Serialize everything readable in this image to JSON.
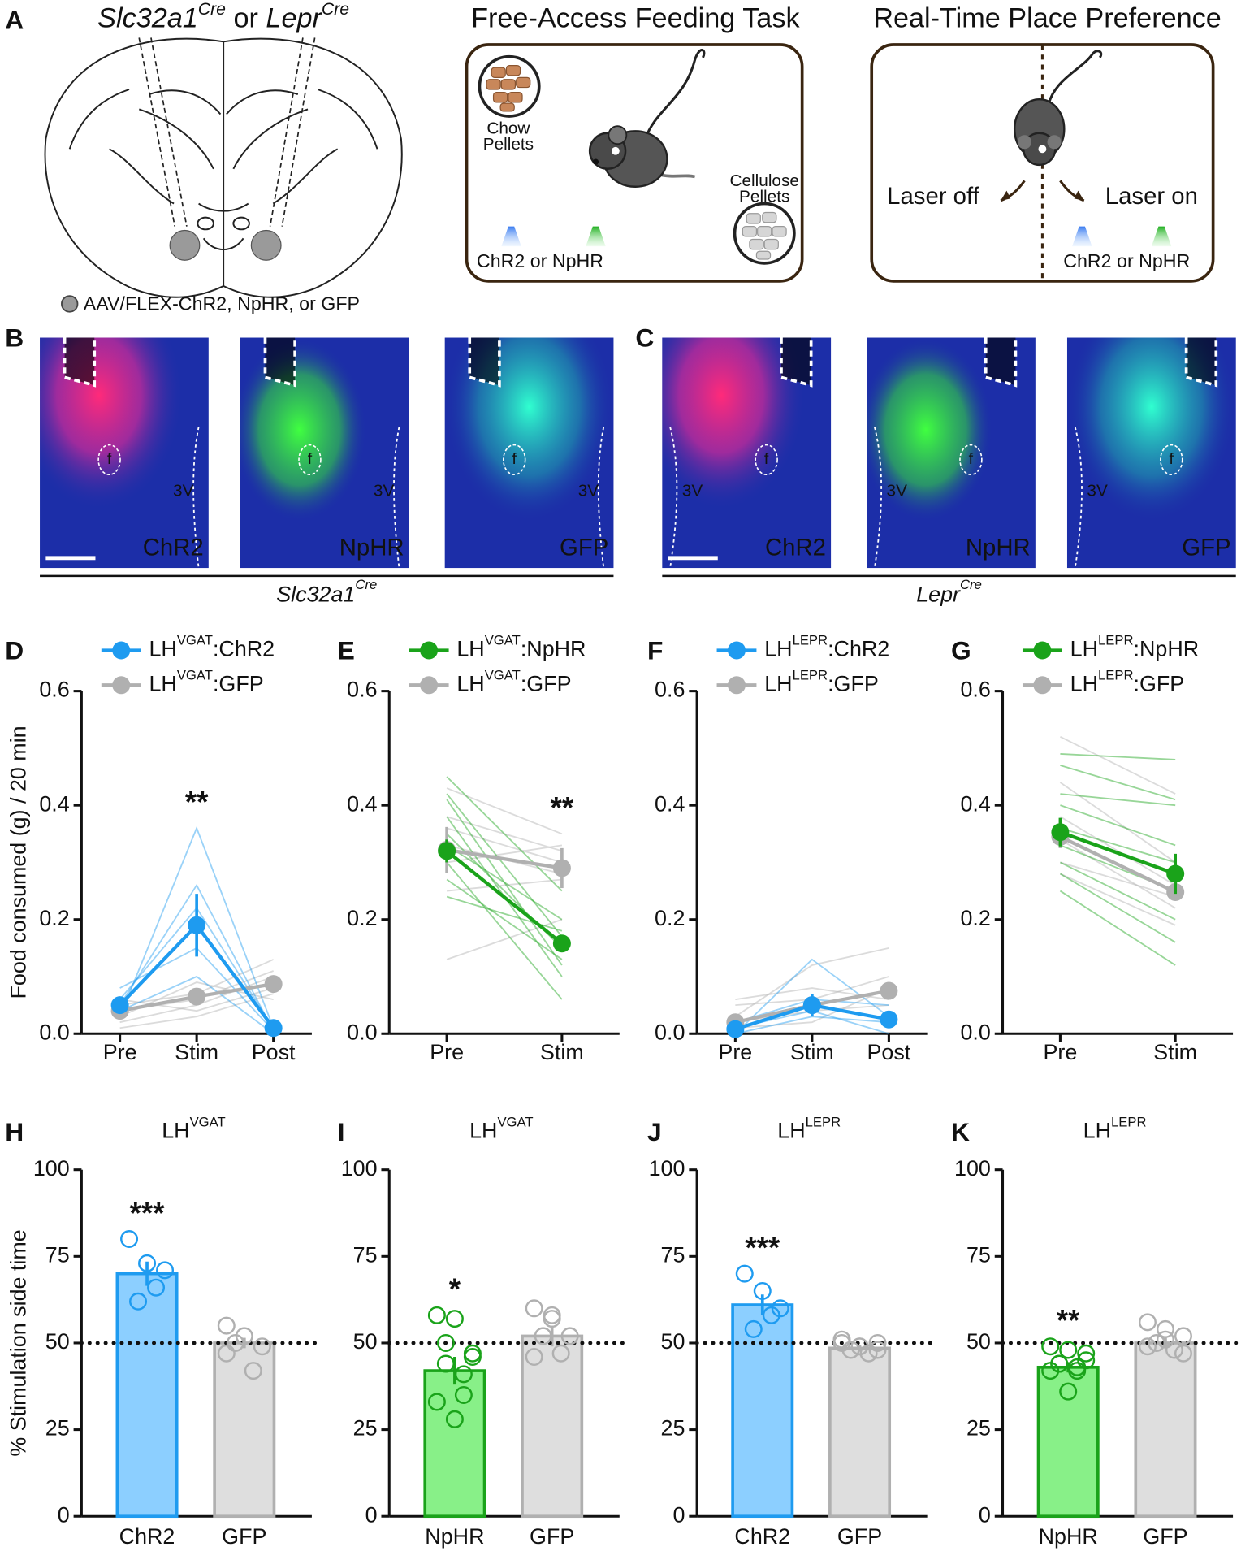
{
  "panel_letters": [
    "A",
    "B",
    "C",
    "D",
    "E",
    "F",
    "G",
    "H",
    "I",
    "J",
    "K"
  ],
  "panel_a": {
    "title": [
      {
        "text": "Slc32a1",
        "italic": true
      },
      {
        "text": "Cre",
        "italic": true,
        "sup": true
      },
      {
        "text": " or "
      },
      {
        "text": "Lepr",
        "italic": true
      },
      {
        "text": "Cre",
        "italic": true,
        "sup": true
      }
    ],
    "legend": "AAV/FLEX-ChR2, NpHR, or GFP"
  },
  "feeding_task": {
    "title": "Free-Access Feeding Task",
    "chow_label": [
      "Chow",
      "Pellets"
    ],
    "cellulose_label": [
      "Cellulose",
      "Pellets"
    ],
    "opsin_label": "ChR2 or NpHR"
  },
  "place_preference": {
    "title": "Real-Time Place Preference",
    "left_label": "Laser off",
    "right_label": "Laser on",
    "opsin_label": "ChR2 or NpHR"
  },
  "histology": {
    "fornix_label": "f",
    "ventricle_label": "3V",
    "groups": [
      {
        "label": [
          {
            "text": "Slc32a1",
            "italic": true
          },
          {
            "text": "Cre",
            "italic": true,
            "sup": true
          }
        ],
        "images": [
          "ChR2",
          "NpHR",
          "GFP"
        ]
      },
      {
        "label": [
          {
            "text": "Lepr",
            "italic": true
          },
          {
            "text": "Cre",
            "italic": true,
            "sup": true
          }
        ],
        "images": [
          "ChR2",
          "NpHR",
          "GFP"
        ]
      }
    ]
  },
  "chart_data": [
    {
      "type": "line",
      "ylabel": "Food consumed (g) / 20 min",
      "categories": [
        "Pre",
        "Stim",
        "Post"
      ],
      "ylim": [
        0,
        0.6
      ],
      "yticks": [
        {
          "value": 0,
          "label": "0.0"
        },
        {
          "value": 0.2,
          "label": "0.2"
        },
        {
          "value": 0.4,
          "label": "0.4"
        },
        {
          "value": 0.6,
          "label": "0.6"
        }
      ],
      "series": [
        {
          "name": "LHVGAT:ChR2",
          "color": "#1e9bf0",
          "values": [
            0.05,
            0.19,
            0.01
          ],
          "errors": [
            0.01,
            0.055,
            0.005
          ],
          "individual": [
            [
              0.03,
              0.36,
              0.01
            ],
            [
              0.05,
              0.26,
              0.005
            ],
            [
              0.06,
              0.22,
              0.01
            ],
            [
              0.08,
              0.15,
              0.005
            ],
            [
              0.04,
              0.1,
              0
            ]
          ]
        },
        {
          "name": "LHVGAT:GFP",
          "color": "#b0b0b0",
          "values": [
            0.04,
            0.065,
            0.087
          ],
          "errors": [
            0.01,
            0.01,
            0.015
          ],
          "individual": [
            [
              0.02,
              0.05,
              0.1
            ],
            [
              0.05,
              0.07,
              0.13
            ],
            [
              0.03,
              0.09,
              0.06
            ],
            [
              0.06,
              0.04,
              0.08
            ],
            [
              0.04,
              0.06,
              0.11
            ],
            [
              0.01,
              0.03,
              0.07
            ]
          ]
        }
      ],
      "annotations": [
        {
          "text": "**",
          "at": "Stim"
        }
      ]
    },
    {
      "type": "line",
      "categories": [
        "Pre",
        "Stim"
      ],
      "ylim": [
        0,
        0.6
      ],
      "yticks": [
        {
          "value": 0,
          "label": "0.0"
        },
        {
          "value": 0.2,
          "label": "0.2"
        },
        {
          "value": 0.4,
          "label": "0.4"
        },
        {
          "value": 0.6,
          "label": "0.6"
        }
      ],
      "series": [
        {
          "name": "LHVGAT:NpHR",
          "color": "#1aa31a",
          "values": [
            0.32,
            0.158
          ],
          "errors": [
            0.02,
            0.015
          ],
          "individual": [
            [
              0.45,
              0.25
            ],
            [
              0.41,
              0.12
            ],
            [
              0.38,
              0.1
            ],
            [
              0.35,
              0.15
            ],
            [
              0.33,
              0.2
            ],
            [
              0.3,
              0.06
            ],
            [
              0.27,
              0.13
            ],
            [
              0.24,
              0.18
            ],
            [
              0.42,
              0.17
            ]
          ]
        },
        {
          "name": "LHVGAT:GFP",
          "color": "#b0b0b0",
          "values": [
            0.322,
            0.29
          ],
          "errors": [
            0.04,
            0.035
          ],
          "individual": [
            [
              0.43,
              0.35
            ],
            [
              0.38,
              0.32
            ],
            [
              0.36,
              0.3
            ],
            [
              0.3,
              0.33
            ],
            [
              0.25,
              0.27
            ],
            [
              0.13,
              0.2
            ],
            [
              0.33,
              0.28
            ]
          ]
        }
      ],
      "annotations": [
        {
          "text": "**",
          "at": "Stim"
        }
      ]
    },
    {
      "type": "line",
      "categories": [
        "Pre",
        "Stim",
        "Post"
      ],
      "ylim": [
        0,
        0.6
      ],
      "yticks": [
        {
          "value": 0,
          "label": "0.0"
        },
        {
          "value": 0.2,
          "label": "0.2"
        },
        {
          "value": 0.4,
          "label": "0.4"
        },
        {
          "value": 0.6,
          "label": "0.6"
        }
      ],
      "series": [
        {
          "name": "LHLEPR:ChR2",
          "color": "#1e9bf0",
          "values": [
            0.008,
            0.05,
            0.025
          ],
          "errors": [
            0.005,
            0.02,
            0.01
          ],
          "individual": [
            [
              0,
              0.13,
              0.03
            ],
            [
              0.01,
              0.04,
              0
            ],
            [
              0.02,
              0.06,
              0.05
            ],
            [
              0,
              0.03,
              0.02
            ]
          ]
        },
        {
          "name": "LHLEPR:GFP",
          "color": "#b0b0b0",
          "values": [
            0.02,
            0.05,
            0.075
          ],
          "errors": [
            0.005,
            0.01,
            0.01
          ],
          "individual": [
            [
              0.03,
              0.12,
              0.15
            ],
            [
              0.05,
              0.06,
              0.1
            ],
            [
              0.01,
              0.02,
              0.08
            ],
            [
              0.02,
              0.04,
              0.05
            ],
            [
              0.06,
              0.08,
              0.06
            ]
          ]
        }
      ]
    },
    {
      "type": "line",
      "categories": [
        "Pre",
        "Stim"
      ],
      "ylim": [
        0,
        0.6
      ],
      "yticks": [
        {
          "value": 0,
          "label": "0.0"
        },
        {
          "value": 0.2,
          "label": "0.2"
        },
        {
          "value": 0.4,
          "label": "0.4"
        },
        {
          "value": 0.6,
          "label": "0.6"
        }
      ],
      "series": [
        {
          "name": "LHLEPR:NpHR",
          "color": "#1aa31a",
          "values": [
            0.353,
            0.28
          ],
          "errors": [
            0.025,
            0.035
          ],
          "individual": [
            [
              0.49,
              0.48
            ],
            [
              0.47,
              0.41
            ],
            [
              0.42,
              0.4
            ],
            [
              0.4,
              0.33
            ],
            [
              0.36,
              0.3
            ],
            [
              0.33,
              0.25
            ],
            [
              0.3,
              0.2
            ],
            [
              0.28,
              0.16
            ],
            [
              0.25,
              0.12
            ]
          ]
        },
        {
          "name": "LHLEPR:GFP",
          "color": "#b0b0b0",
          "values": [
            0.345,
            0.248
          ],
          "errors": [
            0.02,
            0.015
          ],
          "individual": [
            [
              0.52,
              0.42
            ],
            [
              0.44,
              0.3
            ],
            [
              0.38,
              0.26
            ],
            [
              0.34,
              0.22
            ],
            [
              0.3,
              0.24
            ],
            [
              0.28,
              0.19
            ]
          ]
        }
      ]
    },
    {
      "type": "bar",
      "title": "LHVGAT",
      "ylabel": "% Stimulation side time",
      "categories": [
        "ChR2",
        "GFP"
      ],
      "values": [
        70,
        50
      ],
      "errors": [
        3.5,
        1.5
      ],
      "points": [
        [
          80,
          73,
          71,
          62,
          66
        ],
        [
          55,
          52,
          49,
          50,
          42,
          47
        ]
      ],
      "colors": [
        "#1e9bf0",
        "#b0b0b0"
      ],
      "fill_colors": [
        "#8ccfff",
        "#dedede"
      ],
      "ylim": [
        0,
        100
      ],
      "yticks": [
        0,
        25,
        50,
        75,
        100
      ],
      "reference_line": 50,
      "annotations": [
        {
          "text": "***",
          "at": "ChR2"
        }
      ]
    },
    {
      "type": "bar",
      "title": "LHVGAT",
      "categories": [
        "NpHR",
        "GFP"
      ],
      "values": [
        42,
        52
      ],
      "errors": [
        4,
        3
      ],
      "points": [
        [
          58,
          57,
          47,
          44,
          35,
          33,
          28,
          46,
          50,
          41
        ],
        [
          60,
          57,
          52,
          52,
          47,
          46,
          58
        ]
      ],
      "colors": [
        "#1aa31a",
        "#b0b0b0"
      ],
      "fill_colors": [
        "#88f088",
        "#dedede"
      ],
      "ylim": [
        0,
        100
      ],
      "yticks": [
        0,
        25,
        50,
        75,
        100
      ],
      "reference_line": 50,
      "annotations": [
        {
          "text": "*",
          "at": "NpHR"
        }
      ]
    },
    {
      "type": "bar",
      "title": "LHLEPR",
      "categories": [
        "ChR2",
        "GFP"
      ],
      "values": [
        61,
        48.5
      ],
      "errors": [
        3,
        1
      ],
      "points": [
        [
          70,
          65,
          60,
          54,
          58
        ],
        [
          51,
          49,
          48,
          48,
          47,
          50,
          49,
          50
        ]
      ],
      "colors": [
        "#1e9bf0",
        "#b0b0b0"
      ],
      "fill_colors": [
        "#8ccfff",
        "#dedede"
      ],
      "ylim": [
        0,
        100
      ],
      "yticks": [
        0,
        25,
        50,
        75,
        100
      ],
      "reference_line": 50,
      "annotations": [
        {
          "text": "***",
          "at": "ChR2"
        }
      ]
    },
    {
      "type": "bar",
      "title": "LHLEPR",
      "categories": [
        "NpHR",
        "GFP"
      ],
      "values": [
        43,
        50
      ],
      "errors": [
        1.5,
        1.5
      ],
      "points": [
        [
          49,
          48,
          47,
          44,
          43,
          42,
          36,
          45,
          44,
          42
        ],
        [
          56,
          54,
          52,
          50,
          48,
          49,
          51,
          47
        ]
      ],
      "colors": [
        "#1aa31a",
        "#b0b0b0"
      ],
      "fill_colors": [
        "#88f088",
        "#dedede"
      ],
      "ylim": [
        0,
        100
      ],
      "yticks": [
        0,
        25,
        50,
        75,
        100
      ],
      "reference_line": 50,
      "annotations": [
        {
          "text": "**",
          "at": "NpHR"
        }
      ]
    }
  ]
}
